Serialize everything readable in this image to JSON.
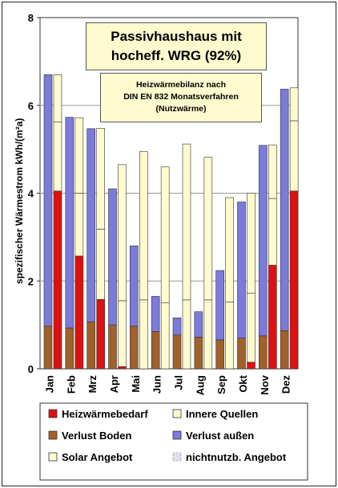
{
  "title_main": [
    "Passivhaushaus mit",
    "hocheff. WRG (92%)"
  ],
  "title_sub": [
    "Heizwärmebilanz nach",
    "DIN EN 832 Monatsverfahren",
    "(Nutzwärme)"
  ],
  "colors": {
    "heat_demand": "#e01010",
    "internal": "#fffbcf",
    "floor": "#a0612a",
    "outer": "#7b7bd9",
    "solar": "#fffbcf",
    "unusable": "#e0e0f0"
  },
  "chart_data": {
    "type": "bar",
    "ylabel": "spezifischer Wärmestrom kWh/(m²a)",
    "ylim": [
      0,
      8
    ],
    "yticks": [
      "0",
      "2",
      "4",
      "6",
      "8"
    ],
    "grid": true,
    "categories": [
      "Jan",
      "Feb",
      "Mrz",
      "Apr",
      "Mai",
      "Jun",
      "Jul",
      "Aug",
      "Sep",
      "Okt",
      "Nov",
      "Dez"
    ],
    "loss_series": [
      {
        "name": "Verlust Boden",
        "values": [
          0.97,
          0.93,
          1.07,
          1.0,
          0.97,
          0.85,
          0.77,
          0.72,
          0.66,
          0.7,
          0.75,
          0.87
        ]
      },
      {
        "name": "Verlust außen",
        "values": [
          5.73,
          4.8,
          4.4,
          3.1,
          1.83,
          0.8,
          0.39,
          0.58,
          1.58,
          3.1,
          4.34,
          5.5
        ]
      }
    ],
    "gain_series": [
      {
        "name": "Heizwärmebedarf",
        "values": [
          4.05,
          2.57,
          1.58,
          0.05,
          0.0,
          0.0,
          0.0,
          0.0,
          0.0,
          0.15,
          2.36,
          4.05
        ]
      },
      {
        "name": "Innere Quellen",
        "values": [
          1.57,
          1.43,
          1.6,
          1.5,
          1.57,
          1.5,
          1.57,
          1.57,
          1.52,
          1.57,
          1.52,
          1.6
        ]
      },
      {
        "name": "Solar Angebot",
        "values": [
          1.08,
          1.72,
          2.3,
          3.1,
          3.38,
          3.1,
          3.55,
          3.25,
          2.38,
          2.28,
          1.22,
          0.75
        ]
      },
      {
        "name": "nichtnutzb. Angebot",
        "values": [
          0.0,
          0.0,
          0.0,
          0.0,
          0.0,
          0.0,
          0.0,
          0.0,
          0.0,
          0.0,
          0.0,
          0.0
        ]
      }
    ],
    "legend": {
      "position": "bottom",
      "items": [
        "Heizwärmebedarf",
        "Innere Quellen",
        "Verlust Boden",
        "Verlust außen",
        "Solar Angebot",
        "nichtnutzb. Angebot"
      ]
    }
  }
}
